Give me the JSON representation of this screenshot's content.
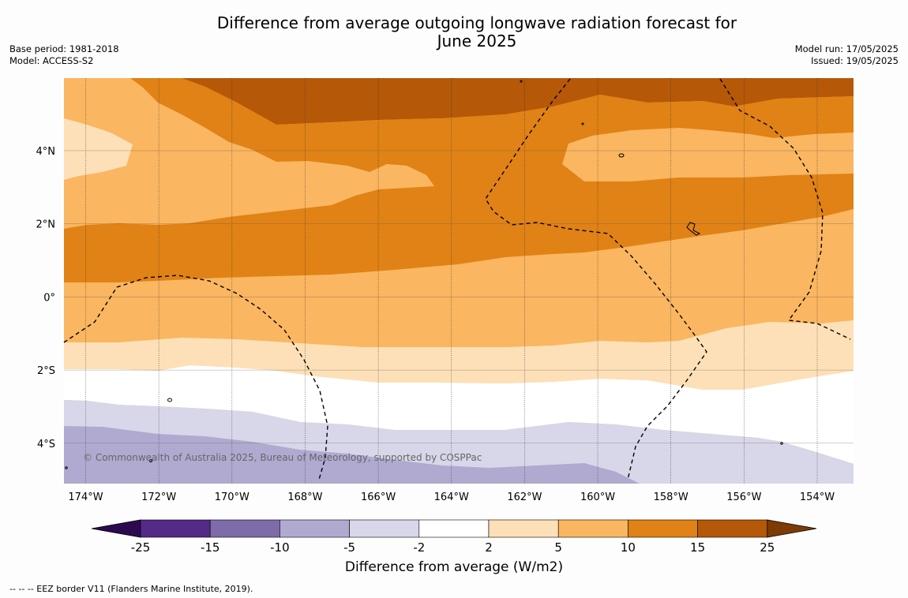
{
  "title": {
    "line1": "Difference from average outgoing longwave radiation forecast for",
    "line2": "June 2025"
  },
  "meta_left": {
    "base_period": "Base period: 1981-2018",
    "model": "Model: ACCESS-S2"
  },
  "meta_right": {
    "model_run": "Model run: 17/05/2025",
    "issued": "Issued: 19/05/2025"
  },
  "map": {
    "lon_labels": [
      "174°W",
      "172°W",
      "170°W",
      "168°W",
      "166°W",
      "164°W",
      "162°W",
      "160°W",
      "158°W",
      "156°W",
      "154°W"
    ],
    "lat_labels": [
      "4°N",
      "2°N",
      "0°",
      "2°S",
      "4°S"
    ],
    "copyright": "© Commonwealth of Australia 2025, Bureau of Meteorology, supported by COSPPac"
  },
  "colorbar": {
    "ticks": [
      "-25",
      "-15",
      "-10",
      "-5",
      "-2",
      "2",
      "5",
      "10",
      "15",
      "25"
    ],
    "colors": [
      "#532a87",
      "#7d6ca9",
      "#b0aad1",
      "#d7d7e9",
      "#ffffff",
      "#fde0b7",
      "#fab660",
      "#e08215",
      "#b55808"
    ],
    "extend_low_color": "#2d0a4f",
    "extend_high_color": "#7e3b05",
    "label": "Difference from average (W/m2)"
  },
  "footnote": "-- -- -- EEZ border V11 (Flanders Marine Institute, 2019)."
}
